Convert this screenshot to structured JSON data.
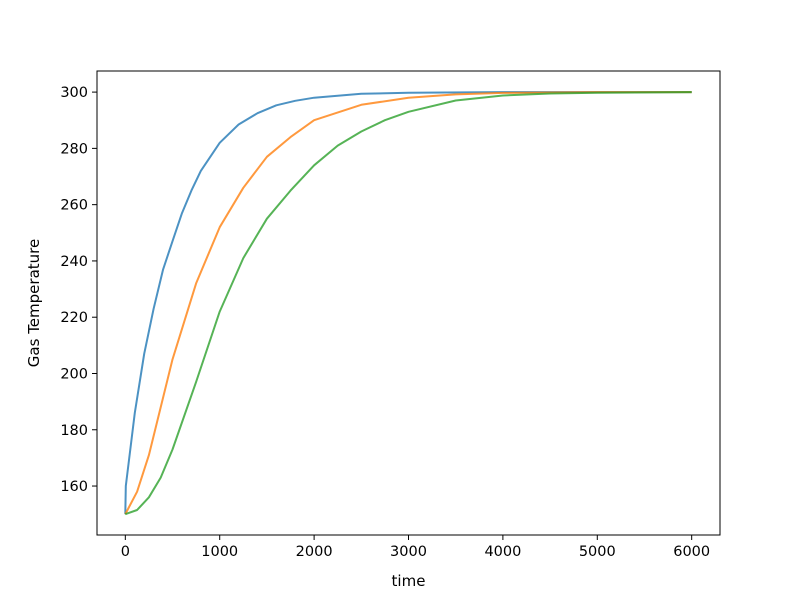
{
  "chart_data": {
    "type": "line",
    "title": "",
    "xlabel": "time",
    "ylabel": "Gas Temperature",
    "xlim": [
      -300,
      6300
    ],
    "ylim": [
      142.6,
      307.5
    ],
    "xticks": [
      0,
      1000,
      2000,
      3000,
      4000,
      5000,
      6000
    ],
    "yticks": [
      160,
      180,
      200,
      220,
      240,
      260,
      280,
      300
    ],
    "grid": false,
    "legend": "none",
    "series": [
      {
        "color": "#1f77b4",
        "x": [
          0,
          5,
          100,
          200,
          300,
          400,
          500,
          600,
          700,
          800,
          1000,
          1200,
          1400,
          1600,
          1800,
          2000,
          2500,
          3000,
          4000,
          6000
        ],
        "y": [
          150,
          160,
          186,
          207,
          223,
          237,
          247,
          257,
          265,
          272,
          282,
          288.5,
          292.5,
          295.3,
          296.9,
          298,
          299.4,
          299.8,
          300,
          300
        ]
      },
      {
        "color": "#ff7f0e",
        "x": [
          0,
          125,
          250,
          375,
          500,
          750,
          1000,
          1250,
          1500,
          1750,
          2000,
          2500,
          3000,
          3500,
          4000,
          5000,
          6000
        ],
        "y": [
          150,
          158,
          171,
          188,
          205,
          232,
          252,
          266,
          277,
          284,
          290,
          295.5,
          298,
          299.2,
          299.7,
          300,
          300
        ]
      },
      {
        "color": "#2ca02c",
        "x": [
          0,
          125,
          250,
          375,
          500,
          750,
          1000,
          1250,
          1500,
          1750,
          2000,
          2250,
          2500,
          2750,
          3000,
          3500,
          4000,
          4500,
          5000,
          6000
        ],
        "y": [
          150,
          151.5,
          156,
          163,
          173,
          197,
          222,
          241,
          255,
          265,
          274,
          281,
          286,
          290,
          293,
          297,
          298.8,
          299.5,
          299.8,
          300
        ]
      }
    ]
  }
}
